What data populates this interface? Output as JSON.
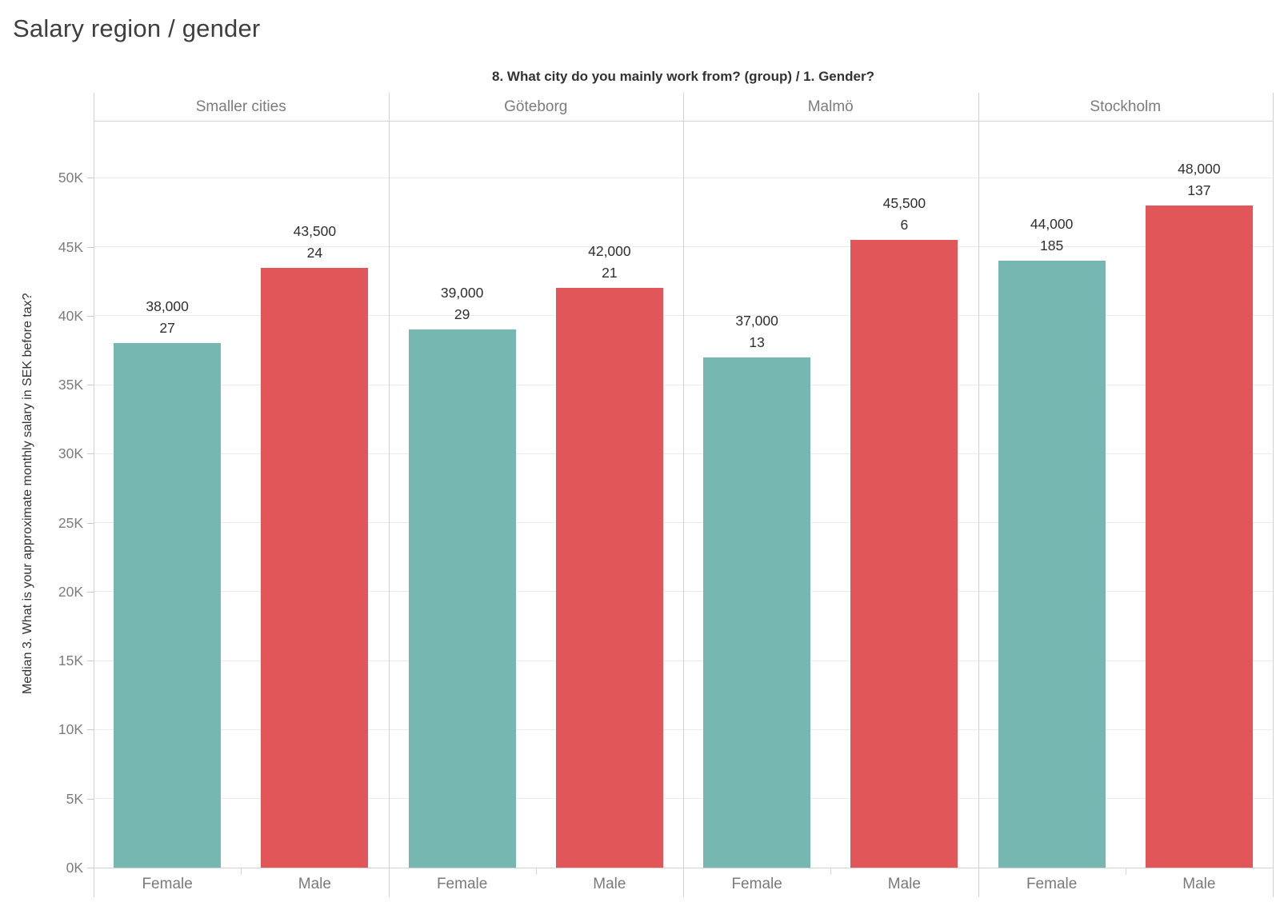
{
  "title": "Salary region / gender",
  "chart_data": {
    "type": "bar",
    "title": "Salary region / gender",
    "column_field_title": "8. What city do you mainly work from? (group)  /  1. Gender?",
    "ylabel": "Median 3. What is your approximate monthly salary in SEK before tax?",
    "xlabel": "",
    "ylim": [
      0,
      54200
    ],
    "ytick_interval": 5000,
    "ytick_labels": [
      "0K",
      "5K",
      "10K",
      "15K",
      "20K",
      "25K",
      "30K",
      "35K",
      "40K",
      "45K",
      "50K"
    ],
    "grid": "horizontal",
    "legend_position": "none",
    "categories": [
      "Female",
      "Male"
    ],
    "series_colors": {
      "Female": "#76b7b2",
      "Male": "#e15759"
    },
    "panels": [
      {
        "label": "Smaller cities",
        "bars": [
          {
            "category": "Female",
            "value": 38000,
            "value_label": "38,000",
            "count": "27"
          },
          {
            "category": "Male",
            "value": 43500,
            "value_label": "43,500",
            "count": "24"
          }
        ]
      },
      {
        "label": "Göteborg",
        "bars": [
          {
            "category": "Female",
            "value": 39000,
            "value_label": "39,000",
            "count": "29"
          },
          {
            "category": "Male",
            "value": 42000,
            "value_label": "42,000",
            "count": "21"
          }
        ]
      },
      {
        "label": "Malmö",
        "bars": [
          {
            "category": "Female",
            "value": 37000,
            "value_label": "37,000",
            "count": "13"
          },
          {
            "category": "Male",
            "value": 45500,
            "value_label": "45,500",
            "count": "6"
          }
        ]
      },
      {
        "label": "Stockholm",
        "bars": [
          {
            "category": "Female",
            "value": 44000,
            "value_label": "44,000",
            "count": "185"
          },
          {
            "category": "Male",
            "value": 48000,
            "value_label": "48,000",
            "count": "137"
          }
        ]
      }
    ]
  }
}
